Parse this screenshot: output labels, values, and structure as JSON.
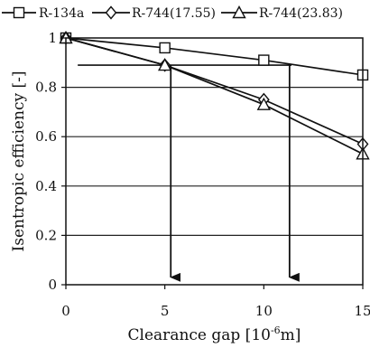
{
  "chart_data": {
    "type": "line",
    "xlabel": "Clearance gap [10",
    "xlabel_sup": "-6",
    "xlabel_unit": "m]",
    "ylabel": "Isentropic efficiency [-]",
    "xlim": [
      0,
      15
    ],
    "ylim": [
      0,
      1
    ],
    "x_ticks": [
      0,
      5,
      10,
      15
    ],
    "y_ticks": [
      0,
      0.2,
      0.4,
      0.6,
      0.8,
      1
    ],
    "x_tick_labels": [
      "0",
      "5",
      "10",
      "15"
    ],
    "y_tick_labels": [
      "0",
      "0.2",
      "0.4",
      "0.6",
      "0.8",
      "1"
    ],
    "grid": "horizontal",
    "legend_position": "top",
    "series": [
      {
        "name": "R-134a",
        "marker": "square",
        "x": [
          0,
          5,
          10,
          15
        ],
        "y": [
          1.0,
          0.96,
          0.91,
          0.85
        ]
      },
      {
        "name": "R-744(17.55)",
        "marker": "diamond",
        "x": [
          0,
          5,
          10,
          15
        ],
        "y": [
          1.0,
          0.89,
          0.75,
          0.57
        ]
      },
      {
        "name": "R-744(23.83)",
        "marker": "triangle",
        "x": [
          0,
          5,
          10,
          15
        ],
        "y": [
          1.0,
          0.89,
          0.73,
          0.53
        ]
      }
    ],
    "annotations": {
      "reference_efficiency": 0.89,
      "arrows": [
        {
          "x": 5.3,
          "from_y": 0.89,
          "to_y": 0.03
        },
        {
          "x": 11.3,
          "from_y": 0.89,
          "to_y": 0.03
        }
      ],
      "horizontal_segment": {
        "x_start": 0.6,
        "x_end": 11.4,
        "y": 0.89
      }
    }
  }
}
